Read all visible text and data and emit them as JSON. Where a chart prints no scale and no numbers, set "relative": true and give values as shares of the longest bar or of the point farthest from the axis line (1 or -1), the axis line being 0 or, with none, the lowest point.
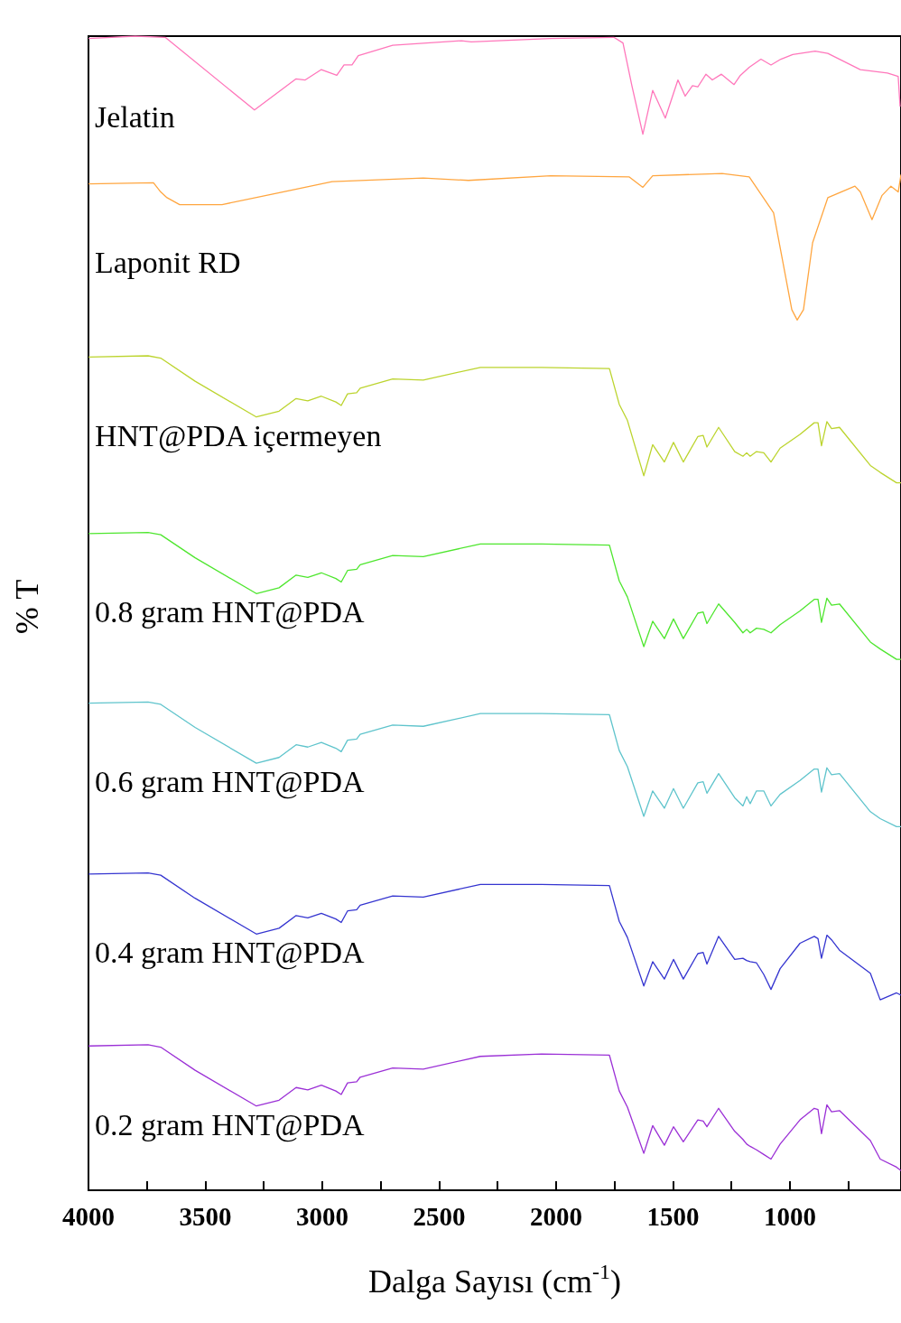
{
  "chart_data": {
    "type": "line",
    "relative": true,
    "xlabel": "Dalga Sayısı (cm$^{-1}$)",
    "ylabel": "% T",
    "xlim": [
      4000,
      525
    ],
    "xticks": [
      4000,
      {
        "value": 3750,
        "label": null
      },
      3500,
      {
        "value": 3250,
        "label": null
      },
      3000,
      {
        "value": 2750,
        "label": null
      },
      2500,
      {
        "value": 2250,
        "label": null
      },
      2000,
      {
        "value": 1750,
        "label": null
      },
      1500,
      {
        "value": 1250,
        "label": null
      },
      1000,
      {
        "value": 750,
        "label": null
      }
    ],
    "grid": false,
    "marker": "none",
    "line_style": "solid",
    "series": [
      {
        "name": "Jelatin",
        "color": "#ff77bb",
        "x": [
          4000,
          3800,
          3672,
          3290,
          3112,
          3073,
          3004,
          2938,
          2907,
          2873,
          2846,
          2699,
          2405,
          2363,
          2023,
          1753,
          1714,
          1676,
          1629,
          1587,
          1533,
          1479,
          1448,
          1417,
          1394,
          1359,
          1332,
          1293,
          1239,
          1212,
          1174,
          1124,
          1081,
          1039,
          988,
          892,
          838,
          699,
          583,
          537,
          529
        ],
        "values": [
          0.998,
          1.0,
          0.999,
          0.936,
          0.963,
          0.962,
          0.971,
          0.966,
          0.975,
          0.975,
          0.983,
          0.992,
          0.996,
          0.995,
          0.998,
          0.999,
          0.994,
          0.957,
          0.915,
          0.953,
          0.929,
          0.962,
          0.948,
          0.957,
          0.956,
          0.967,
          0.962,
          0.967,
          0.958,
          0.966,
          0.973,
          0.98,
          0.975,
          0.98,
          0.984,
          0.987,
          0.985,
          0.971,
          0.968,
          0.965,
          0.939
        ]
      },
      {
        "name": "Laponit RD",
        "color": "#ffa640",
        "x": [
          4000,
          3722,
          3691,
          3664,
          3610,
          3429,
          3216,
          2958,
          2568,
          2375,
          2023,
          1687,
          1629,
          1587,
          1290,
          1174,
          1070,
          1031,
          992,
          969,
          942,
          903,
          838,
          722,
          699,
          649,
          606,
          568,
          537,
          525
        ],
        "values": [
          0.872,
          0.873,
          0.865,
          0.86,
          0.854,
          0.854,
          0.863,
          0.874,
          0.877,
          0.875,
          0.879,
          0.878,
          0.869,
          0.879,
          0.881,
          0.878,
          0.847,
          0.805,
          0.763,
          0.754,
          0.763,
          0.821,
          0.86,
          0.87,
          0.865,
          0.841,
          0.862,
          0.87,
          0.865,
          0.88
        ]
      },
      {
        "name": "HNT@PDA içermeyen",
        "color": "#bcd42e",
        "x": [
          4000,
          3745,
          3691,
          3544,
          3282,
          3185,
          3112,
          3062,
          3004,
          2942,
          2919,
          2892,
          2853,
          2838,
          2699,
          2568,
          2324,
          2062,
          1772,
          1730,
          1695,
          1625,
          1587,
          1537,
          1498,
          1456,
          1394,
          1371,
          1355,
          1305,
          1236,
          1201,
          1185,
          1170,
          1143,
          1112,
          1081,
          1042,
          957,
          896,
          880,
          865,
          842,
          822,
          788,
          656,
          614,
          544,
          525
        ],
        "values": [
          0.722,
          0.723,
          0.721,
          0.701,
          0.67,
          0.675,
          0.686,
          0.684,
          0.688,
          0.683,
          0.68,
          0.69,
          0.691,
          0.695,
          0.703,
          0.702,
          0.713,
          0.713,
          0.712,
          0.681,
          0.667,
          0.619,
          0.646,
          0.631,
          0.648,
          0.631,
          0.653,
          0.654,
          0.644,
          0.661,
          0.64,
          0.636,
          0.639,
          0.636,
          0.64,
          0.639,
          0.631,
          0.643,
          0.655,
          0.665,
          0.665,
          0.645,
          0.666,
          0.66,
          0.661,
          0.628,
          0.622,
          0.613,
          0.613
        ]
      },
      {
        "name": "0.8 gram HNT@PDA",
        "color": "#4ee62e",
        "x": [
          4000,
          3745,
          3691,
          3544,
          3282,
          3185,
          3112,
          3062,
          3004,
          2942,
          2919,
          2892,
          2853,
          2838,
          2699,
          2568,
          2324,
          2062,
          1772,
          1730,
          1695,
          1625,
          1587,
          1537,
          1498,
          1456,
          1394,
          1371,
          1355,
          1305,
          1236,
          1201,
          1185,
          1170,
          1143,
          1112,
          1081,
          1042,
          957,
          896,
          880,
          865,
          842,
          822,
          788,
          656,
          614,
          544,
          525
        ],
        "values": [
          0.569,
          0.57,
          0.568,
          0.548,
          0.517,
          0.522,
          0.533,
          0.531,
          0.535,
          0.53,
          0.527,
          0.537,
          0.538,
          0.542,
          0.55,
          0.549,
          0.56,
          0.56,
          0.559,
          0.528,
          0.514,
          0.471,
          0.493,
          0.478,
          0.495,
          0.478,
          0.5,
          0.501,
          0.491,
          0.508,
          0.492,
          0.483,
          0.486,
          0.483,
          0.487,
          0.486,
          0.483,
          0.49,
          0.502,
          0.512,
          0.512,
          0.492,
          0.513,
          0.507,
          0.508,
          0.475,
          0.469,
          0.46,
          0.46
        ]
      },
      {
        "name": "0.6 gram HNT@PDA",
        "color": "#5fc4cc",
        "x": [
          4000,
          3745,
          3691,
          3544,
          3282,
          3185,
          3112,
          3062,
          3004,
          2942,
          2919,
          2892,
          2853,
          2838,
          2699,
          2568,
          2324,
          2062,
          1772,
          1730,
          1695,
          1625,
          1587,
          1537,
          1498,
          1456,
          1394,
          1371,
          1355,
          1305,
          1236,
          1201,
          1185,
          1170,
          1143,
          1112,
          1081,
          1042,
          957,
          896,
          880,
          865,
          842,
          822,
          788,
          656,
          614,
          544,
          525
        ],
        "values": [
          0.422,
          0.423,
          0.421,
          0.401,
          0.37,
          0.375,
          0.386,
          0.384,
          0.388,
          0.383,
          0.38,
          0.39,
          0.391,
          0.395,
          0.403,
          0.402,
          0.413,
          0.413,
          0.412,
          0.381,
          0.367,
          0.324,
          0.346,
          0.331,
          0.348,
          0.331,
          0.353,
          0.354,
          0.344,
          0.361,
          0.34,
          0.333,
          0.341,
          0.335,
          0.346,
          0.346,
          0.333,
          0.343,
          0.355,
          0.365,
          0.365,
          0.345,
          0.366,
          0.36,
          0.361,
          0.328,
          0.322,
          0.315,
          0.315
        ]
      },
      {
        "name": "0.4 gram HNT@PDA",
        "color": "#3535d0",
        "x": [
          4000,
          3745,
          3691,
          3544,
          3282,
          3185,
          3112,
          3062,
          3004,
          2942,
          2919,
          2892,
          2853,
          2838,
          2699,
          2568,
          2324,
          2062,
          1772,
          1730,
          1695,
          1625,
          1587,
          1537,
          1498,
          1456,
          1394,
          1371,
          1355,
          1305,
          1236,
          1201,
          1185,
          1170,
          1143,
          1112,
          1081,
          1042,
          957,
          896,
          880,
          865,
          842,
          822,
          788,
          656,
          614,
          544,
          525
        ],
        "values": [
          0.274,
          0.275,
          0.273,
          0.253,
          0.222,
          0.227,
          0.238,
          0.236,
          0.24,
          0.235,
          0.232,
          0.242,
          0.243,
          0.247,
          0.255,
          0.254,
          0.265,
          0.265,
          0.264,
          0.233,
          0.219,
          0.177,
          0.198,
          0.183,
          0.2,
          0.183,
          0.205,
          0.206,
          0.196,
          0.22,
          0.2,
          0.201,
          0.199,
          0.198,
          0.197,
          0.187,
          0.174,
          0.192,
          0.214,
          0.22,
          0.218,
          0.201,
          0.221,
          0.217,
          0.208,
          0.188,
          0.165,
          0.171,
          0.169
        ]
      },
      {
        "name": "0.2 gram HNT@PDA",
        "color": "#9b30d6",
        "x": [
          4000,
          3745,
          3691,
          3544,
          3282,
          3185,
          3112,
          3062,
          3004,
          2942,
          2919,
          2892,
          2853,
          2838,
          2699,
          2568,
          2324,
          2062,
          1772,
          1730,
          1695,
          1625,
          1587,
          1537,
          1498,
          1456,
          1394,
          1371,
          1355,
          1305,
          1236,
          1201,
          1185,
          1170,
          1143,
          1112,
          1081,
          1042,
          957,
          896,
          880,
          865,
          842,
          822,
          788,
          656,
          614,
          544,
          525
        ],
        "values": [
          0.125,
          0.126,
          0.124,
          0.104,
          0.073,
          0.078,
          0.089,
          0.087,
          0.091,
          0.086,
          0.083,
          0.093,
          0.094,
          0.098,
          0.106,
          0.105,
          0.116,
          0.118,
          0.117,
          0.086,
          0.072,
          0.032,
          0.056,
          0.039,
          0.055,
          0.042,
          0.061,
          0.06,
          0.055,
          0.071,
          0.051,
          0.044,
          0.04,
          0.038,
          0.035,
          0.031,
          0.027,
          0.04,
          0.061,
          0.071,
          0.07,
          0.049,
          0.074,
          0.068,
          0.069,
          0.043,
          0.027,
          0.02,
          0.017
        ]
      }
    ]
  }
}
